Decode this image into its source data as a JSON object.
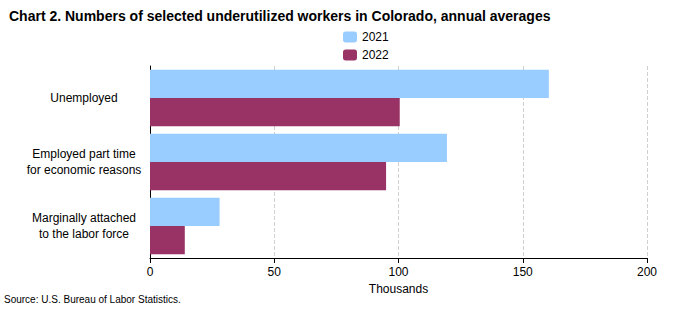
{
  "chart_data": {
    "type": "bar",
    "orientation": "horizontal",
    "title": "Chart 2. Numbers of selected underutilized workers in Colorado, annual averages",
    "source": "Source: U.S. Bureau of Labor Statistics.",
    "xlabel": "Thousands",
    "categories": [
      "Unemployed",
      "Employed part time\nfor economic reasons",
      "Marginally attached\nto the labor force"
    ],
    "series": [
      {
        "name": "2021",
        "color": "#99ccff",
        "values": [
          160.5,
          119.5,
          28
        ]
      },
      {
        "name": "2022",
        "color": "#993366",
        "values": [
          100.5,
          95,
          14
        ]
      }
    ],
    "xlim": [
      0,
      200
    ],
    "xticks": [
      0,
      50,
      100,
      150,
      200
    ],
    "grid": true,
    "legend": "top"
  }
}
